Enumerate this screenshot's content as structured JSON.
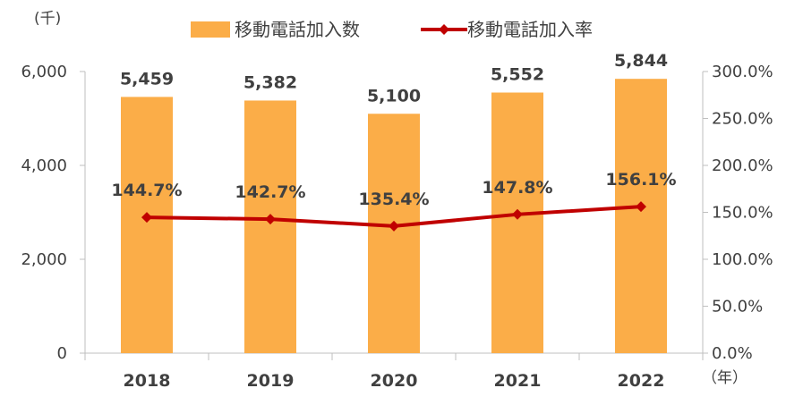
{
  "chart_data": {
    "type": "bar",
    "categories": [
      "2018",
      "2019",
      "2020",
      "2021",
      "2022"
    ],
    "series": [
      {
        "name": "移動電話加入数",
        "type": "bar",
        "axis": "left",
        "color": "#FBAD48",
        "values": [
          5459,
          5382,
          5100,
          5552,
          5844
        ],
        "labels": [
          "5,459",
          "5,382",
          "5,100",
          "5,552",
          "5,844"
        ]
      },
      {
        "name": "移動電話加入率",
        "type": "line",
        "axis": "right",
        "color": "#C00000",
        "values": [
          144.7,
          142.7,
          135.4,
          147.8,
          156.1
        ],
        "labels": [
          "144.7%",
          "142.7%",
          "135.4%",
          "147.8%",
          "156.1%"
        ]
      }
    ],
    "y_left": {
      "unit": "(千)",
      "ylim": [
        0,
        6000
      ],
      "ticks": [
        "0",
        "2,000",
        "4,000",
        "6,000"
      ],
      "tick_values": [
        0,
        2000,
        4000,
        6000
      ]
    },
    "y_right": {
      "ylim": [
        0,
        300
      ],
      "ticks": [
        "0.0%",
        "50.0%",
        "100.0%",
        "150.0%",
        "200.0%",
        "250.0%",
        "300.0%"
      ],
      "tick_values": [
        0,
        50,
        100,
        150,
        200,
        250,
        300
      ]
    },
    "x_unit": "（年）",
    "legend_position": "top",
    "grid": false
  }
}
